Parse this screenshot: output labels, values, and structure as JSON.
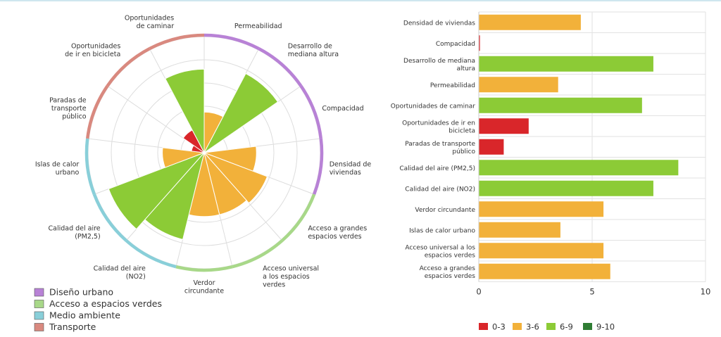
{
  "chart_data": [
    {
      "type": "polar-area",
      "rmax": 10,
      "grid": true,
      "order_clockwise_from_top": [
        "Permeabilidad",
        "Desarrollo de mediana altura",
        "Compacidad",
        "Densidad de viviendas",
        "Acceso a grandes espacios verdes",
        "Acceso universal a los espacios verdes",
        "Verdor circundante",
        "Calidad del aire (NO2)",
        "Calidad del aire (PM2,5)",
        "Islas de calor urbano",
        "Paradas de transporte público",
        "Oportunidades de ir en bicicleta",
        "Oportunidades de caminar"
      ],
      "labels": [
        [
          "Permeabilidad"
        ],
        [
          "Desarrollo de",
          "mediana altura"
        ],
        [
          "Compacidad"
        ],
        [
          "Densidad de",
          "viviendas"
        ],
        [
          "Acceso a grandes",
          "espacios verdes"
        ],
        [
          "Acceso universal",
          "a los espacios",
          "verdes"
        ],
        [
          "Verdor",
          "circundante"
        ],
        [
          "Calidad del aire",
          "(NO2)"
        ],
        [
          "Calidad del aire",
          "(PM2,5)"
        ],
        [
          "Islas de calor",
          "urbano"
        ],
        [
          "Paradas de",
          "transporte",
          "público"
        ],
        [
          "Oportunidades",
          "de ir en bicicleta"
        ],
        [
          "Oportunidades",
          "de caminar"
        ]
      ],
      "values": [
        3.5,
        7.7,
        0.05,
        4.5,
        5.8,
        5.5,
        5.5,
        7.7,
        8.8,
        3.6,
        1.1,
        2.2,
        7.2
      ],
      "categories_group": [
        "Diseño urbano",
        "Diseño urbano",
        "Diseño urbano",
        "Diseño urbano",
        "Acceso a espacios verdes",
        "Acceso a espacios verdes",
        "Acceso a espacios verdes",
        "Medio ambiente",
        "Medio ambiente",
        "Medio ambiente",
        "Transporte",
        "Transporte",
        "Transporte"
      ],
      "group_legend": [
        {
          "name": "Diseño urbano",
          "color": "#b882d6"
        },
        {
          "name": "Acceso a espacios verdes",
          "color": "#a8d889"
        },
        {
          "name": "Medio ambiente",
          "color": "#89cfd9"
        },
        {
          "name": "Transporte",
          "color": "#d9897f"
        }
      ]
    },
    {
      "type": "bar",
      "orientation": "horizontal",
      "categories": [
        [
          "Densidad de viviendas"
        ],
        [
          "Compacidad"
        ],
        [
          "Desarrollo de mediana",
          "altura"
        ],
        [
          "Permeabilidad"
        ],
        [
          "Oportunidades de caminar"
        ],
        [
          "Oportunidades de ir en",
          "bicicleta"
        ],
        [
          "Paradas de transporte",
          "público"
        ],
        [
          "Calidad del aire (PM2,5)"
        ],
        [
          "Calidad del aire (NO2)"
        ],
        [
          "Verdor circundante"
        ],
        [
          "Islas de calor urbano"
        ],
        [
          "Acceso universal a los",
          "espacios verdes"
        ],
        [
          "Acceso a grandes",
          "espacios verdes"
        ]
      ],
      "values": [
        4.5,
        0.05,
        7.7,
        3.5,
        7.2,
        2.2,
        1.1,
        8.8,
        7.7,
        5.5,
        3.6,
        5.5,
        5.8
      ],
      "xlim": [
        0,
        10
      ],
      "xticks": [
        "0",
        "5",
        "10"
      ],
      "grid": true,
      "legend_position": "bottom-center",
      "color_scale": [
        {
          "label": "0-3",
          "min": 0,
          "max": 3,
          "color": "#d9262a"
        },
        {
          "label": "3-6",
          "min": 3,
          "max": 6,
          "color": "#f2b13a"
        },
        {
          "label": "6-9",
          "min": 6,
          "max": 9,
          "color": "#8ccb36"
        },
        {
          "label": "9-10",
          "min": 9,
          "max": 10,
          "color": "#2f7d34"
        }
      ]
    }
  ]
}
